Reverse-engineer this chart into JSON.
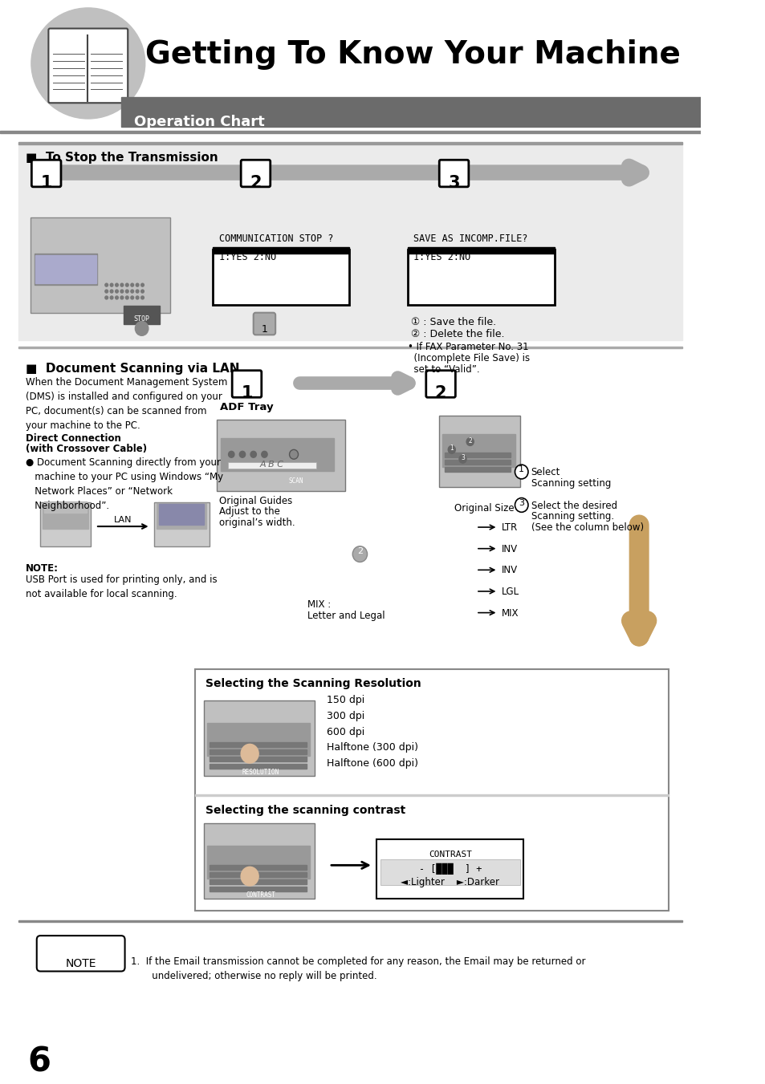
{
  "title": "Getting To Know Your Machine",
  "subtitle": "Operation Chart",
  "bg_color": "#ffffff",
  "header_bar_color": "#6b6b6b",
  "section1_title": "■  To Stop the Transmission",
  "section2_title": "■  Document Scanning via LAN",
  "note_text": "1.  If the Email transmission cannot be completed for any reason, the Email may be returned or\n       undelivered; otherwise no reply will be printed.",
  "page_number": "6",
  "comm_stop_text": "COMMUNICATION STOP ?\n1:YES 2:NO",
  "save_incomp_text": "SAVE AS INCOMP.FILE?\n1:YES 2:NO",
  "save_file_text": "① : Save the file.",
  "delete_file_text": "② : Delete the file.",
  "fax_param_line1": "• If FAX Parameter No. 31",
  "fax_param_line2": "  (Incomplete File Save) is",
  "fax_param_line3": "  set to “Valid”.",
  "scan_section_text1": "When the Document Management System\n(DMS) is installed and configured on your\nPC, document(s) can be scanned from\nyour machine to the PC.",
  "direct_conn_line1": "Direct Connection",
  "direct_conn_line2": "(with Crossover Cable)",
  "bullet_text": "● Document Scanning directly from your\n   machine to your PC using Windows “My\n   Network Places” or “Network\n   Neighborhood”.",
  "note2_label": "NOTE:",
  "note2_body": "USB Port is used for printing only, and is\nnot available for local scanning.",
  "adf_tray_text": "ADF Tray",
  "orig_guides_line1": "Original Guides",
  "orig_guides_line2": "Adjust to the",
  "orig_guides_line3": "original’s width.",
  "orig_size_text": "Original Size",
  "select_scan_line1": "Select",
  "select_scan_line2": "Scanning setting",
  "select_desired_line1": "Select the desired",
  "select_desired_line2": "Scanning setting.",
  "select_desired_line3": "(See the column below)",
  "mix_letter_line1": "MIX :",
  "mix_letter_line2": "Letter and Legal",
  "paper_sizes": [
    "LTR",
    "INV",
    "INV",
    "LGL",
    "MIX"
  ],
  "scan_res_title": "Selecting the Scanning Resolution",
  "scan_res_items": [
    "150 dpi",
    "300 dpi",
    "600 dpi",
    "Halftone (300 dpi)",
    "Halftone (600 dpi)"
  ],
  "scan_contrast_title": "Selecting the scanning contrast",
  "contrast_line1": "CONTRAST",
  "contrast_line2": "- [███  ] +",
  "contrast_nav": "◄:Lighter    ►:Darker",
  "lan_text": "LAN",
  "resolution_label": "RESOLUTION",
  "contrast_label": "CONTRAST"
}
